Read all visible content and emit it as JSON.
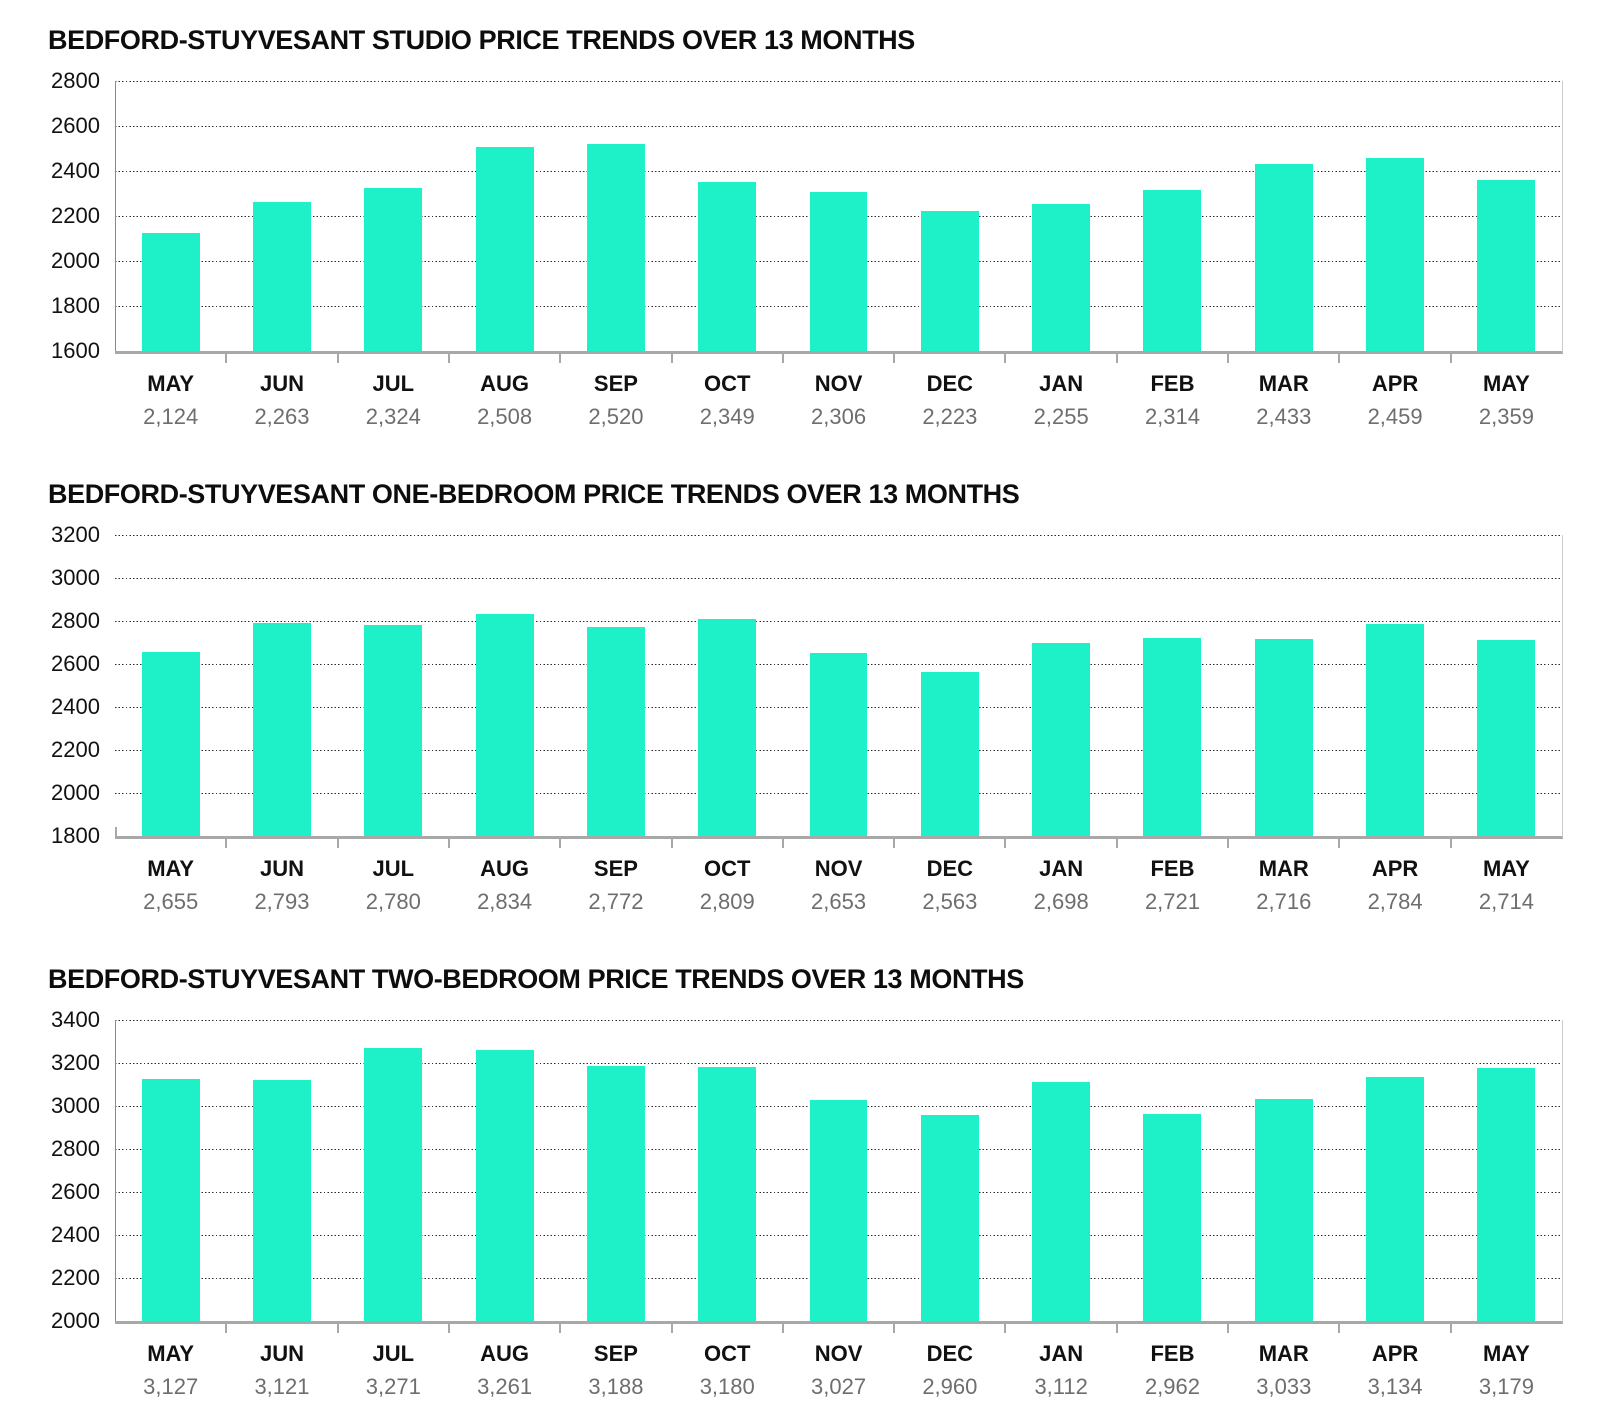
{
  "colors": {
    "bar": "#1ef0c8",
    "gridline": "#2b2b2b",
    "axis": "#a8a8a8",
    "month_label": "#111111",
    "price_label": "#6e6e6e",
    "background": "#ffffff"
  },
  "chart_data": [
    {
      "type": "bar",
      "title": "BEDFORD-STUYVESANT STUDIO PRICE TRENDS OVER 13 MONTHS",
      "categories": [
        "MAY",
        "JUN",
        "JUL",
        "AUG",
        "SEP",
        "OCT",
        "NOV",
        "DEC",
        "JAN",
        "FEB",
        "MAR",
        "APR",
        "MAY"
      ],
      "values": [
        2124,
        2263,
        2324,
        2508,
        2520,
        2349,
        2306,
        2223,
        2255,
        2314,
        2433,
        2459,
        2359
      ],
      "value_labels": [
        "2,124",
        "2,263",
        "2,324",
        "2,508",
        "2,520",
        "2,349",
        "2,306",
        "2,223",
        "2,255",
        "2,314",
        "2,433",
        "2,459",
        "2,359"
      ],
      "ylim": [
        1600,
        2800
      ],
      "ytick": 200,
      "ytick_labels": [
        "2800",
        "2600",
        "2400",
        "2200",
        "2000",
        "1800",
        "1600"
      ],
      "grid": "dotted",
      "legend": "none",
      "y_axis_line": true
    },
    {
      "type": "bar",
      "title": "BEDFORD-STUYVESANT ONE-BEDROOM PRICE TRENDS OVER 13 MONTHS",
      "categories": [
        "MAY",
        "JUN",
        "JUL",
        "AUG",
        "SEP",
        "OCT",
        "NOV",
        "DEC",
        "JAN",
        "FEB",
        "MAR",
        "APR",
        "MAY"
      ],
      "values": [
        2655,
        2793,
        2780,
        2834,
        2772,
        2809,
        2653,
        2563,
        2698,
        2721,
        2716,
        2784,
        2714
      ],
      "value_labels": [
        "2,655",
        "2,793",
        "2,780",
        "2,834",
        "2,772",
        "2,809",
        "2,653",
        "2,563",
        "2,698",
        "2,721",
        "2,716",
        "2,784",
        "2,714"
      ],
      "ylim": [
        1800,
        3200
      ],
      "ytick": 200,
      "ytick_labels": [
        "3200",
        "3000",
        "2800",
        "2600",
        "2400",
        "2200",
        "2000",
        "1800"
      ],
      "grid": "dotted",
      "legend": "none",
      "y_axis_line": false
    },
    {
      "type": "bar",
      "title": "BEDFORD-STUYVESANT TWO-BEDROOM PRICE TRENDS OVER 13 MONTHS",
      "categories": [
        "MAY",
        "JUN",
        "JUL",
        "AUG",
        "SEP",
        "OCT",
        "NOV",
        "DEC",
        "JAN",
        "FEB",
        "MAR",
        "APR",
        "MAY"
      ],
      "values": [
        3127,
        3121,
        3271,
        3261,
        3188,
        3180,
        3027,
        2960,
        3112,
        2962,
        3033,
        3134,
        3179
      ],
      "value_labels": [
        "3,127",
        "3,121",
        "3,271",
        "3,261",
        "3,188",
        "3,180",
        "3,027",
        "2,960",
        "3,112",
        "2,962",
        "3,033",
        "3,134",
        "3,179"
      ],
      "ylim": [
        2000,
        3400
      ],
      "ytick": 200,
      "ytick_labels": [
        "3400",
        "3200",
        "3000",
        "2800",
        "2600",
        "2400",
        "2200",
        "2000"
      ],
      "grid": "dotted",
      "legend": "none",
      "y_axis_line": true
    }
  ]
}
